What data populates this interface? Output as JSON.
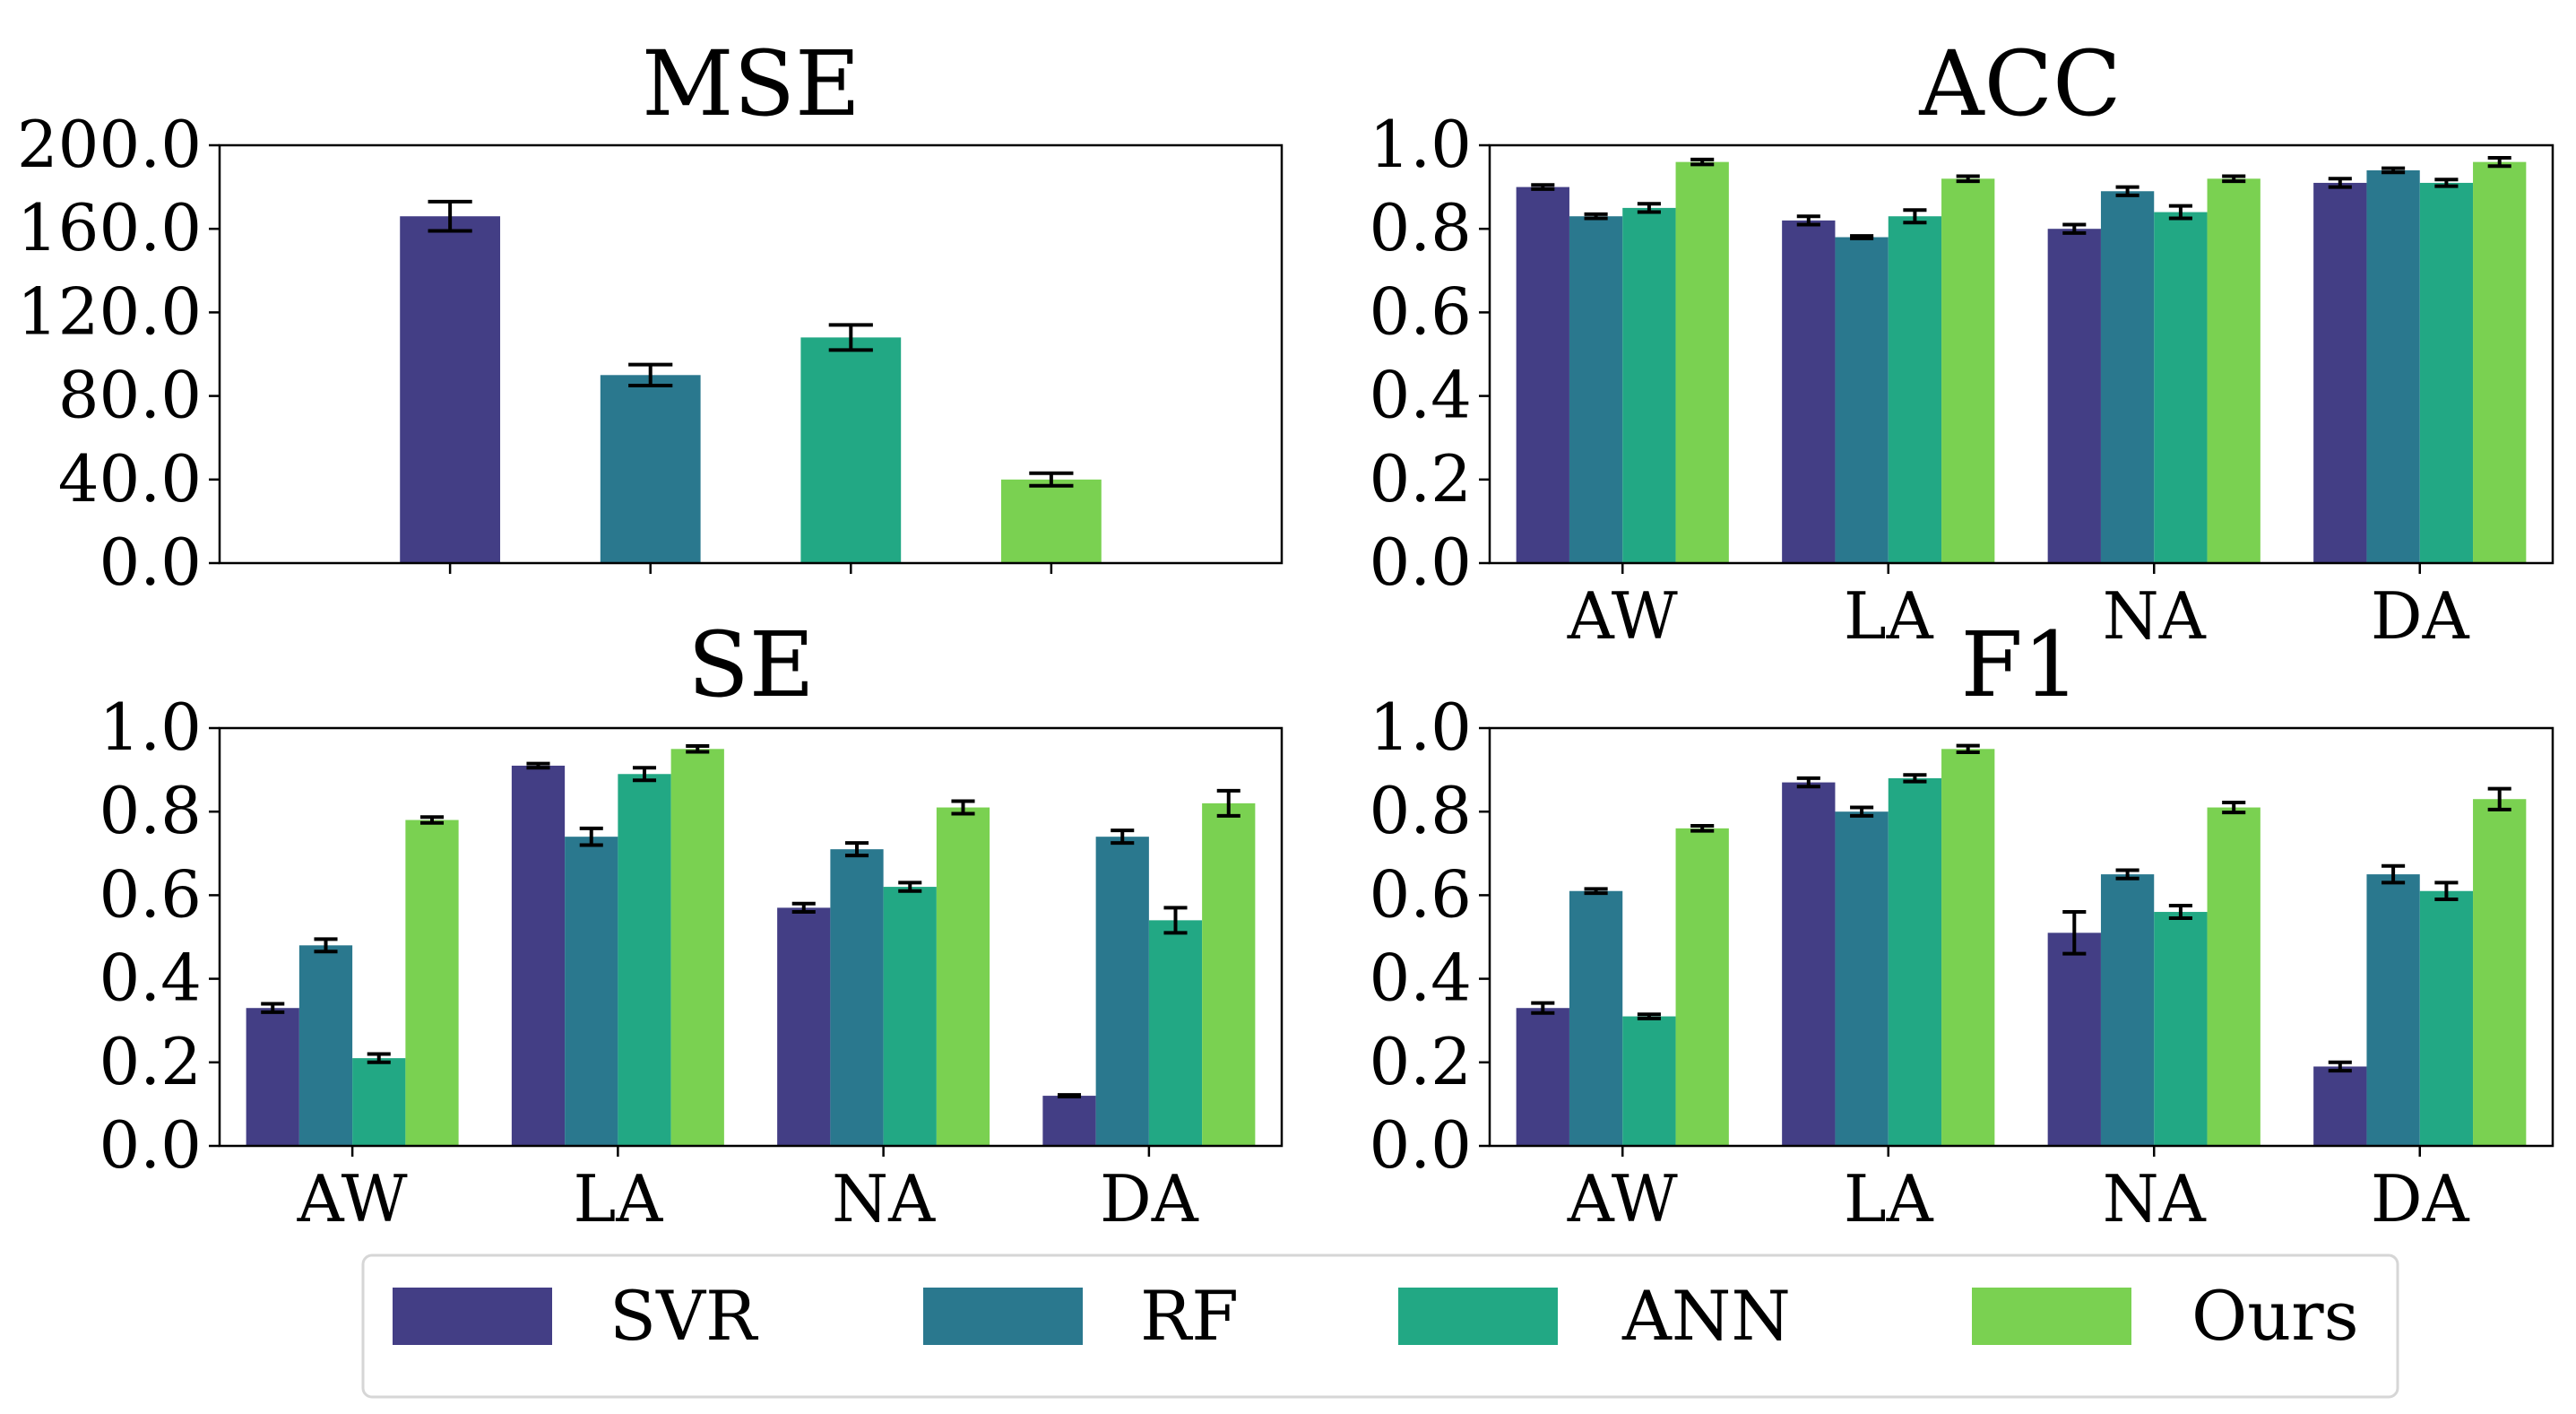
{
  "colors": {
    "SVR": "#433e85",
    "RF": "#2a788e",
    "ANN": "#22a884",
    "Ours": "#7ad151"
  },
  "legend": {
    "entries": [
      "SVR",
      "RF",
      "ANN",
      "Ours"
    ]
  },
  "chart_data": [
    {
      "id": "mse",
      "type": "bar",
      "title": "MSE",
      "categories": [
        ""
      ],
      "series": [
        {
          "name": "SVR",
          "values": [
            166
          ],
          "errors": [
            7
          ]
        },
        {
          "name": "RF",
          "values": [
            90
          ],
          "errors": [
            5
          ]
        },
        {
          "name": "ANN",
          "values": [
            108
          ],
          "errors": [
            6
          ]
        },
        {
          "name": "Ours",
          "values": [
            40
          ],
          "errors": [
            3
          ]
        }
      ],
      "ylim": [
        0,
        200
      ],
      "yticks": [
        "0.0",
        "40.0",
        "80.0",
        "120.0",
        "160.0",
        "200.0"
      ],
      "ytick_values": [
        0,
        40,
        80,
        120,
        160,
        200
      ],
      "xlabel": "",
      "ylabel": ""
    },
    {
      "id": "acc",
      "type": "bar",
      "title": "ACC",
      "categories": [
        "AW",
        "LA",
        "NA",
        "DA"
      ],
      "series": [
        {
          "name": "SVR",
          "values": [
            0.9,
            0.82,
            0.8,
            0.91
          ],
          "errors": [
            0.005,
            0.01,
            0.01,
            0.01
          ]
        },
        {
          "name": "RF",
          "values": [
            0.83,
            0.78,
            0.89,
            0.94
          ],
          "errors": [
            0.005,
            0.003,
            0.01,
            0.005
          ]
        },
        {
          "name": "ANN",
          "values": [
            0.85,
            0.83,
            0.84,
            0.91
          ],
          "errors": [
            0.01,
            0.015,
            0.015,
            0.008
          ]
        },
        {
          "name": "Ours",
          "values": [
            0.96,
            0.92,
            0.92,
            0.96
          ],
          "errors": [
            0.006,
            0.006,
            0.006,
            0.01
          ]
        }
      ],
      "ylim": [
        0,
        1.0
      ],
      "yticks": [
        "0.0",
        "0.2",
        "0.4",
        "0.6",
        "0.8",
        "1.0"
      ],
      "ytick_values": [
        0,
        0.2,
        0.4,
        0.6,
        0.8,
        1.0
      ],
      "xlabel": "",
      "ylabel": ""
    },
    {
      "id": "se",
      "type": "bar",
      "title": "SE",
      "categories": [
        "AW",
        "LA",
        "NA",
        "DA"
      ],
      "series": [
        {
          "name": "SVR",
          "values": [
            0.33,
            0.91,
            0.57,
            0.12
          ],
          "errors": [
            0.01,
            0.005,
            0.01,
            0.002
          ]
        },
        {
          "name": "RF",
          "values": [
            0.48,
            0.74,
            0.71,
            0.74
          ],
          "errors": [
            0.015,
            0.02,
            0.015,
            0.015
          ]
        },
        {
          "name": "ANN",
          "values": [
            0.21,
            0.89,
            0.62,
            0.54
          ],
          "errors": [
            0.01,
            0.015,
            0.01,
            0.03
          ]
        },
        {
          "name": "Ours",
          "values": [
            0.78,
            0.95,
            0.81,
            0.82
          ],
          "errors": [
            0.007,
            0.007,
            0.015,
            0.03
          ]
        }
      ],
      "ylim": [
        0,
        1.0
      ],
      "yticks": [
        "0.0",
        "0.2",
        "0.4",
        "0.6",
        "0.8",
        "1.0"
      ],
      "ytick_values": [
        0,
        0.2,
        0.4,
        0.6,
        0.8,
        1.0
      ],
      "xlabel": "",
      "ylabel": ""
    },
    {
      "id": "f1",
      "type": "bar",
      "title": "F1",
      "categories": [
        "AW",
        "LA",
        "NA",
        "DA"
      ],
      "series": [
        {
          "name": "SVR",
          "values": [
            0.33,
            0.87,
            0.51,
            0.19
          ],
          "errors": [
            0.012,
            0.01,
            0.05,
            0.01
          ]
        },
        {
          "name": "RF",
          "values": [
            0.61,
            0.8,
            0.65,
            0.65
          ],
          "errors": [
            0.005,
            0.01,
            0.01,
            0.02
          ]
        },
        {
          "name": "ANN",
          "values": [
            0.31,
            0.88,
            0.56,
            0.61
          ],
          "errors": [
            0.005,
            0.008,
            0.015,
            0.02
          ]
        },
        {
          "name": "Ours",
          "values": [
            0.76,
            0.95,
            0.81,
            0.83
          ],
          "errors": [
            0.006,
            0.008,
            0.012,
            0.025
          ]
        }
      ],
      "ylim": [
        0,
        1.0
      ],
      "yticks": [
        "0.0",
        "0.2",
        "0.4",
        "0.6",
        "0.8",
        "1.0"
      ],
      "ytick_values": [
        0,
        0.2,
        0.4,
        0.6,
        0.8,
        1.0
      ],
      "xlabel": "",
      "ylabel": ""
    }
  ]
}
